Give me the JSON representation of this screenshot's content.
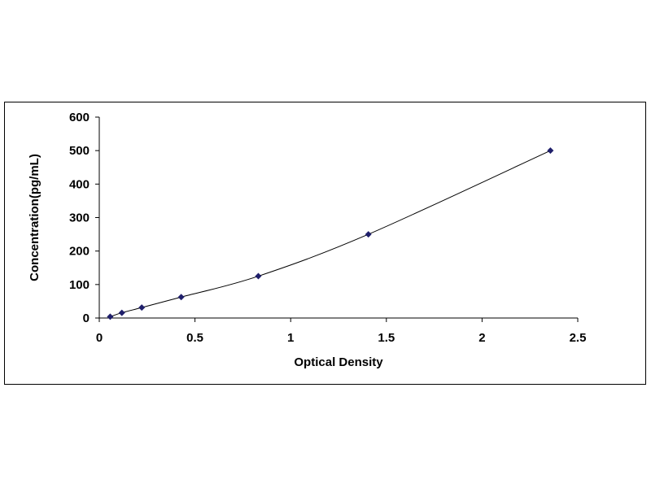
{
  "chart_data": {
    "type": "scatter",
    "title": "",
    "xlabel": "Optical Density",
    "ylabel": "Concentration(pg/mL)",
    "xlim": [
      0,
      2.5
    ],
    "ylim": [
      0,
      600
    ],
    "x_ticks": [
      "0",
      "0.5",
      "1",
      "1.5",
      "2",
      "2.5"
    ],
    "y_ticks": [
      "0",
      "100",
      "200",
      "300",
      "400",
      "500",
      "600"
    ],
    "grid": false,
    "legend": "none",
    "series": [
      {
        "x": [
          0.057,
          0.118,
          0.222,
          0.428,
          0.831,
          1.406,
          2.357
        ],
        "y": [
          3.9,
          15.6,
          31.3,
          62.5,
          125,
          250,
          500
        ],
        "marker": "diamond",
        "color": "#1f1f6b",
        "fit_line": true
      }
    ]
  }
}
